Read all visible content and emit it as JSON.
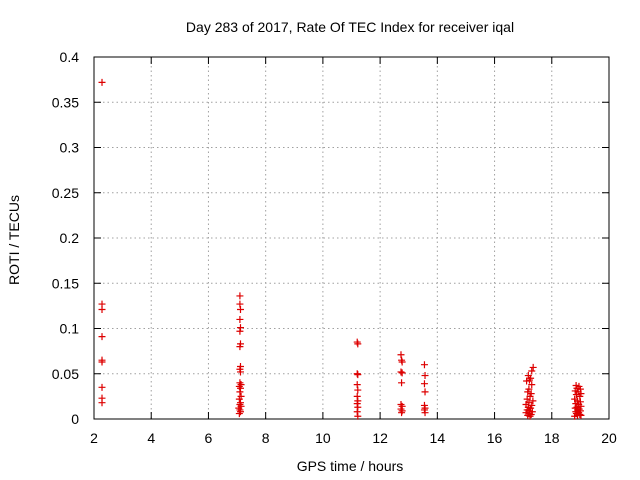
{
  "chart_data": {
    "type": "scatter",
    "title": "Day 283 of 2017, Rate Of TEC Index for receiver iqal",
    "xlabel": "GPS time / hours",
    "ylabel": "ROTI / TECUs",
    "xlim": [
      2,
      20
    ],
    "ylim": [
      0,
      0.4
    ],
    "xticks": [
      2,
      4,
      6,
      8,
      10,
      12,
      14,
      16,
      18,
      20
    ],
    "yticks": [
      0,
      0.05,
      0.1,
      0.15,
      0.2,
      0.25,
      0.3,
      0.35,
      0.4
    ],
    "ytick_labels": [
      "0",
      "0.05",
      "0.1",
      "0.15",
      "0.2",
      "0.25",
      "0.3",
      "0.35",
      "0.4"
    ],
    "grid": true,
    "marker": "+",
    "color": "#dd0000",
    "series": [
      {
        "name": "ROTI",
        "points": [
          [
            2.28,
            0.372
          ],
          [
            2.28,
            0.127
          ],
          [
            2.28,
            0.121
          ],
          [
            2.28,
            0.091
          ],
          [
            2.28,
            0.065
          ],
          [
            2.28,
            0.063
          ],
          [
            2.28,
            0.035
          ],
          [
            2.28,
            0.023
          ],
          [
            2.28,
            0.018
          ],
          [
            7.1,
            0.136
          ],
          [
            7.1,
            0.127
          ],
          [
            7.12,
            0.121
          ],
          [
            7.1,
            0.11
          ],
          [
            7.12,
            0.101
          ],
          [
            7.1,
            0.097
          ],
          [
            7.12,
            0.083
          ],
          [
            7.1,
            0.08
          ],
          [
            7.12,
            0.058
          ],
          [
            7.1,
            0.055
          ],
          [
            7.12,
            0.052
          ],
          [
            7.1,
            0.04
          ],
          [
            7.14,
            0.038
          ],
          [
            7.08,
            0.036
          ],
          [
            7.12,
            0.034
          ],
          [
            7.1,
            0.03
          ],
          [
            7.14,
            0.025
          ],
          [
            7.08,
            0.022
          ],
          [
            7.12,
            0.018
          ],
          [
            7.1,
            0.016
          ],
          [
            7.14,
            0.014
          ],
          [
            7.06,
            0.012
          ],
          [
            7.1,
            0.01
          ],
          [
            7.12,
            0.008
          ],
          [
            7.08,
            0.006
          ],
          [
            11.2,
            0.085
          ],
          [
            11.22,
            0.083
          ],
          [
            11.2,
            0.05
          ],
          [
            11.22,
            0.049
          ],
          [
            11.2,
            0.038
          ],
          [
            11.22,
            0.032
          ],
          [
            11.2,
            0.025
          ],
          [
            11.22,
            0.02
          ],
          [
            11.2,
            0.017
          ],
          [
            11.22,
            0.013
          ],
          [
            11.2,
            0.008
          ],
          [
            11.22,
            0.003
          ],
          [
            12.73,
            0.071
          ],
          [
            12.75,
            0.065
          ],
          [
            12.77,
            0.063
          ],
          [
            12.73,
            0.052
          ],
          [
            12.77,
            0.051
          ],
          [
            12.75,
            0.04
          ],
          [
            12.73,
            0.016
          ],
          [
            12.77,
            0.014
          ],
          [
            12.73,
            0.011
          ],
          [
            12.77,
            0.009
          ],
          [
            12.75,
            0.007
          ],
          [
            13.55,
            0.06
          ],
          [
            13.57,
            0.048
          ],
          [
            13.55,
            0.039
          ],
          [
            13.57,
            0.03
          ],
          [
            13.55,
            0.015
          ],
          [
            13.57,
            0.012
          ],
          [
            13.55,
            0.01
          ],
          [
            13.57,
            0.007
          ],
          [
            17.35,
            0.057
          ],
          [
            17.3,
            0.053
          ],
          [
            17.18,
            0.048
          ],
          [
            17.26,
            0.045
          ],
          [
            17.22,
            0.043
          ],
          [
            17.12,
            0.042
          ],
          [
            17.3,
            0.038
          ],
          [
            17.2,
            0.033
          ],
          [
            17.16,
            0.03
          ],
          [
            17.28,
            0.028
          ],
          [
            17.24,
            0.025
          ],
          [
            17.14,
            0.022
          ],
          [
            17.34,
            0.02
          ],
          [
            17.2,
            0.018
          ],
          [
            17.1,
            0.016
          ],
          [
            17.3,
            0.015
          ],
          [
            17.18,
            0.013
          ],
          [
            17.26,
            0.012
          ],
          [
            17.14,
            0.01
          ],
          [
            17.22,
            0.009
          ],
          [
            17.32,
            0.008
          ],
          [
            17.1,
            0.007
          ],
          [
            17.2,
            0.006
          ],
          [
            17.28,
            0.005
          ],
          [
            17.16,
            0.004
          ],
          [
            17.24,
            0.003
          ],
          [
            18.85,
            0.037
          ],
          [
            18.95,
            0.036
          ],
          [
            18.88,
            0.034
          ],
          [
            19.0,
            0.033
          ],
          [
            18.82,
            0.031
          ],
          [
            18.92,
            0.03
          ],
          [
            19.02,
            0.028
          ],
          [
            18.86,
            0.027
          ],
          [
            18.98,
            0.025
          ],
          [
            18.8,
            0.022
          ],
          [
            18.9,
            0.02
          ],
          [
            19.0,
            0.019
          ],
          [
            18.84,
            0.017
          ],
          [
            18.94,
            0.016
          ],
          [
            19.02,
            0.014
          ],
          [
            18.88,
            0.013
          ],
          [
            18.82,
            0.012
          ],
          [
            18.96,
            0.011
          ],
          [
            18.9,
            0.01
          ],
          [
            19.0,
            0.009
          ],
          [
            18.84,
            0.008
          ],
          [
            18.94,
            0.007
          ],
          [
            18.86,
            0.006
          ],
          [
            18.98,
            0.005
          ],
          [
            18.9,
            0.004
          ],
          [
            19.02,
            0.004
          ],
          [
            18.8,
            0.003
          ]
        ]
      }
    ]
  }
}
